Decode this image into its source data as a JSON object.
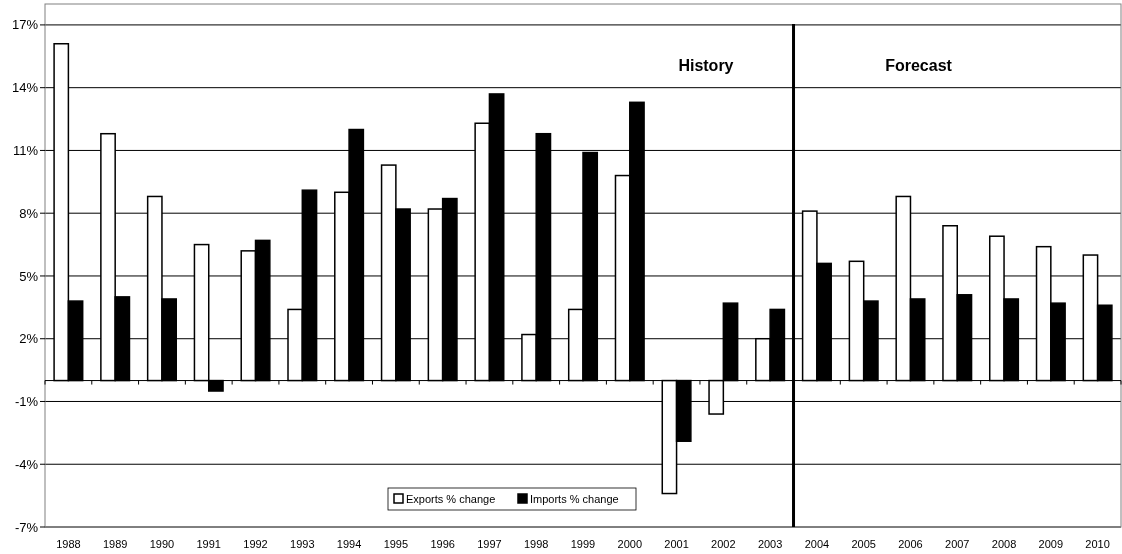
{
  "chart_data": {
    "type": "bar",
    "categories": [
      "1988",
      "1989",
      "1990",
      "1991",
      "1992",
      "1993",
      "1994",
      "1995",
      "1996",
      "1997",
      "1998",
      "1999",
      "2000",
      "2001",
      "2002",
      "2003",
      "2004",
      "2005",
      "2006",
      "2007",
      "2008",
      "2009",
      "2010"
    ],
    "series": [
      {
        "name": "Exports % change",
        "color": "#ffffff",
        "values": [
          16.1,
          11.8,
          8.8,
          6.5,
          6.2,
          3.4,
          9.0,
          10.3,
          8.2,
          12.3,
          2.2,
          3.4,
          9.8,
          -5.4,
          -1.6,
          2.0,
          8.1,
          5.7,
          8.8,
          7.4,
          6.9,
          6.4,
          6.0
        ]
      },
      {
        "name": "Imports % change",
        "color": "#000000",
        "values": [
          3.8,
          4.0,
          3.9,
          -0.5,
          6.7,
          9.1,
          12.0,
          8.2,
          8.7,
          13.7,
          11.8,
          10.9,
          13.3,
          -2.9,
          3.7,
          3.4,
          5.6,
          3.8,
          3.9,
          4.1,
          3.9,
          3.7,
          3.6
        ]
      }
    ],
    "ylim": [
      -7,
      18
    ],
    "yticks": [
      {
        "value": 17,
        "label": "17%"
      },
      {
        "value": 14,
        "label": "14%"
      },
      {
        "value": 11,
        "label": "11%"
      },
      {
        "value": 8,
        "label": "8%"
      },
      {
        "value": 5,
        "label": "5%"
      },
      {
        "value": 2,
        "label": "2%"
      },
      {
        "value": -1,
        "label": "-1%"
      },
      {
        "value": -4,
        "label": "-4%"
      },
      {
        "value": -7,
        "label": "-7%"
      }
    ],
    "grid": "y",
    "legend": "bottom",
    "ref_lines": [
      {
        "axis": "x",
        "value": "2004",
        "color": "#000000"
      }
    ],
    "annotations": [
      "History",
      "Forecast"
    ]
  }
}
